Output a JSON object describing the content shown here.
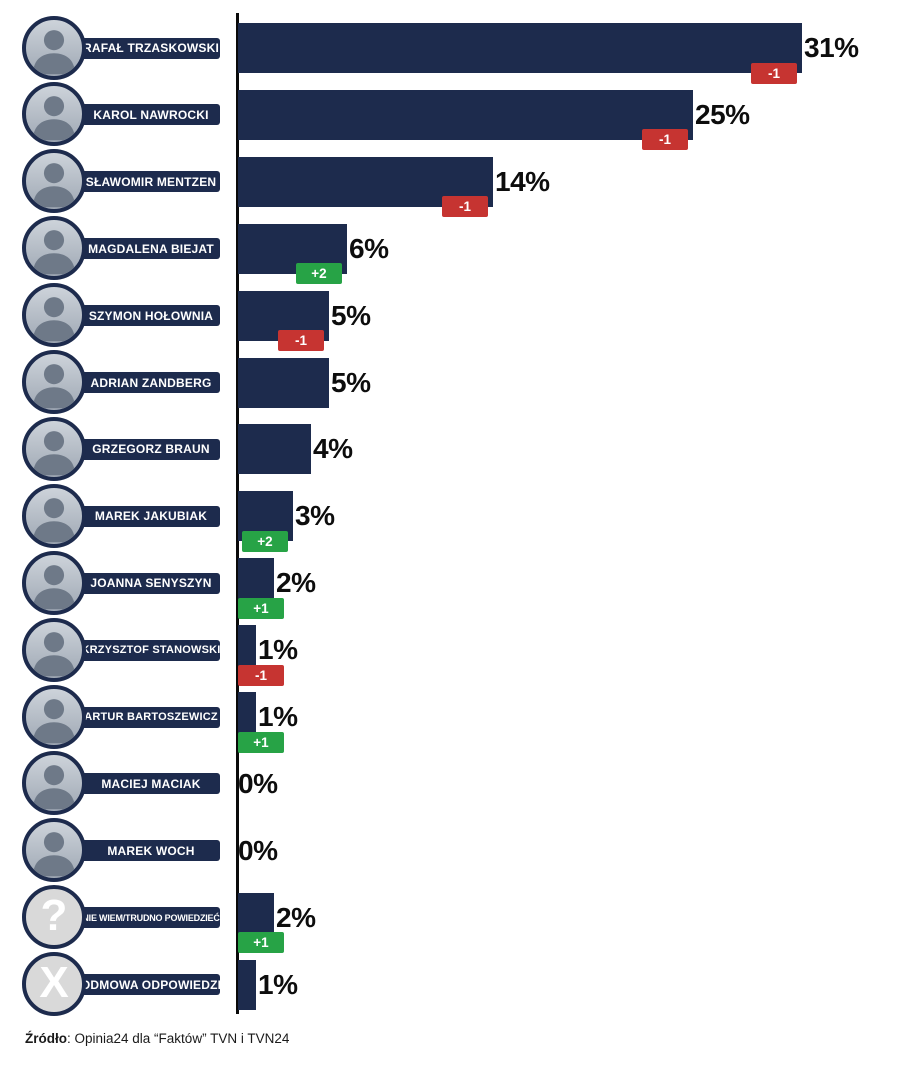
{
  "chart_data": {
    "type": "bar",
    "orientation": "horizontal",
    "title": "",
    "xlabel": "",
    "ylabel": "",
    "unit": "%",
    "xlim": [
      0,
      33
    ],
    "grid": false,
    "categories": [
      "RAFAŁ TRZASKOWSKI",
      "KAROL NAWROCKI",
      "SŁAWOMIR MENTZEN",
      "MAGDALENA BIEJAT",
      "SZYMON HOŁOWNIA",
      "ADRIAN ZANDBERG",
      "GRZEGORZ BRAUN",
      "MAREK JAKUBIAK",
      "JOANNA SENYSZYN",
      "KRZYSZTOF STANOWSKI",
      "ARTUR BARTOSZEWICZ",
      "MACIEJ MACIAK",
      "MAREK WOCH",
      "NIE WIEM/TRUDNO POWIEDZIEĆ",
      "ODMOWA ODPOWIEDZI"
    ],
    "values": [
      31,
      25,
      14,
      6,
      5,
      5,
      4,
      3,
      2,
      1,
      1,
      0,
      0,
      2,
      1
    ],
    "value_labels": [
      "31%",
      "25%",
      "14%",
      "6%",
      "5%",
      "5%",
      "4%",
      "3%",
      "2%",
      "1%",
      "1%",
      "0%",
      "0%",
      "2%",
      "1%"
    ],
    "changes": [
      "-1",
      "-1",
      "-1",
      "+2",
      "-1",
      null,
      null,
      "+2",
      "+1",
      "-1",
      "+1",
      null,
      null,
      "+1",
      null
    ],
    "avatar_types": [
      "photo",
      "photo",
      "photo",
      "photo",
      "photo",
      "photo",
      "photo",
      "photo",
      "photo",
      "photo",
      "photo",
      "photo",
      "photo",
      "question",
      "cross"
    ],
    "avatar_glyphs": [
      null,
      null,
      null,
      null,
      null,
      null,
      null,
      null,
      null,
      null,
      null,
      null,
      null,
      "?",
      "X"
    ]
  },
  "colors": {
    "bar": "#1d2b4d",
    "negative_badge": "#c63431",
    "positive_badge": "#27a346",
    "axis": "#0a0a0a",
    "label_text": "#ffffff",
    "value_text": "#0d0d0d"
  },
  "footer": {
    "source_label": "Źródło",
    "source_rest": ": Opinia24 dla “Faktów” TVN i TVN24"
  }
}
